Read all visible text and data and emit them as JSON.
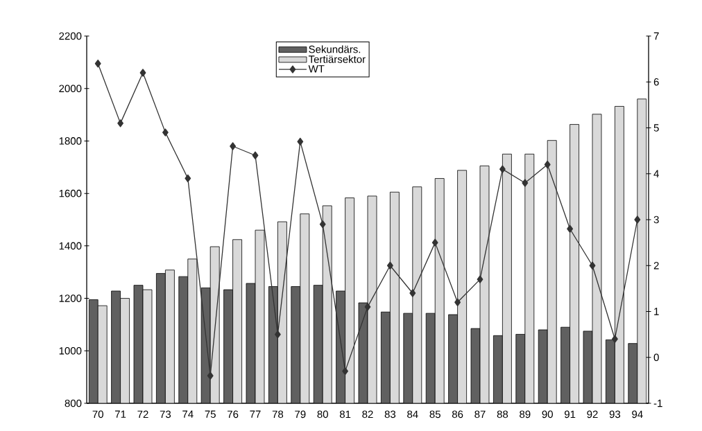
{
  "chart_data": {
    "type": "bar",
    "categories": [
      "70",
      "71",
      "72",
      "73",
      "74",
      "75",
      "76",
      "77",
      "78",
      "79",
      "80",
      "81",
      "82",
      "83",
      "84",
      "85",
      "86",
      "87",
      "88",
      "89",
      "90",
      "91",
      "92",
      "93",
      "94"
    ],
    "series": [
      {
        "name": "Sekundärs.",
        "color": "#606060",
        "values": [
          1195,
          1228,
          1250,
          1295,
          1283,
          1240,
          1233,
          1257,
          1245,
          1245,
          1250,
          1228,
          1183,
          1148,
          1143,
          1143,
          1138,
          1085,
          1058,
          1063,
          1080,
          1090,
          1075,
          1042,
          1028
        ]
      },
      {
        "name": "Tertiärsektor",
        "color": "#d9d9d9",
        "values": [
          1172,
          1200,
          1233,
          1308,
          1350,
          1397,
          1424,
          1460,
          1492,
          1522,
          1553,
          1583,
          1590,
          1605,
          1625,
          1657,
          1688,
          1705,
          1750,
          1750,
          1802,
          1863,
          1902,
          1932,
          1960
        ]
      },
      {
        "name": "WT",
        "color": "#333333",
        "type": "line",
        "axis": "y2",
        "marker": "diamond",
        "values": [
          6.4,
          5.1,
          6.2,
          4.9,
          3.9,
          -0.4,
          4.6,
          4.4,
          0.5,
          4.7,
          2.9,
          -0.3,
          1.1,
          2.0,
          1.4,
          2.5,
          1.2,
          1.7,
          4.1,
          3.8,
          4.2,
          2.8,
          2.0,
          0.4,
          3.0
        ]
      }
    ],
    "ylim": [
      800,
      2200
    ],
    "yticks": [
      800,
      1000,
      1200,
      1400,
      1600,
      1800,
      2000,
      2200
    ],
    "y2lim": [
      -1,
      7
    ],
    "y2ticks": [
      -1,
      0,
      1,
      2,
      3,
      4,
      5,
      6,
      7
    ],
    "legend": "top"
  }
}
